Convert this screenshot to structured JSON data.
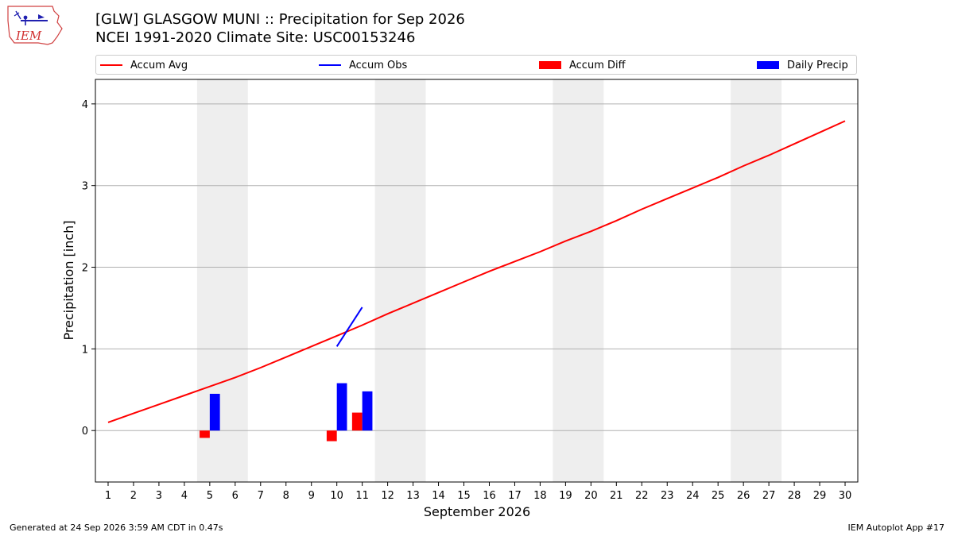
{
  "header": {
    "logo_text": "IEM",
    "title_line1": "[GLW] GLASGOW MUNI :: Precipitation for Sep 2026",
    "title_line2": "NCEI 1991-2020 Climate Site: USC00153246"
  },
  "legend": {
    "placement": "top",
    "items": [
      {
        "label": "Accum Avg",
        "type": "line",
        "color": "#ff0000"
      },
      {
        "label": "Accum Obs",
        "type": "line",
        "color": "#0000ff"
      },
      {
        "label": "Accum Diff",
        "type": "bar",
        "color": "#ff0000"
      },
      {
        "label": "Daily Precip",
        "type": "bar",
        "color": "#0000ff"
      }
    ]
  },
  "footer": {
    "generated": "Generated at 24 Sep 2026 3:59 AM CDT in 0.47s",
    "app": "IEM Autoplot App #17"
  },
  "chart_data": {
    "type": "bar",
    "xlabel": "September 2026",
    "ylabel": "Precipitation [inch]",
    "xlim": [
      0.5,
      30.5
    ],
    "ylim": [
      -0.63,
      4.3
    ],
    "x_ticks": [
      1,
      2,
      3,
      4,
      5,
      6,
      7,
      8,
      9,
      10,
      11,
      12,
      13,
      14,
      15,
      16,
      17,
      18,
      19,
      20,
      21,
      22,
      23,
      24,
      25,
      26,
      27,
      28,
      29,
      30
    ],
    "y_ticks": [
      0,
      1,
      2,
      3,
      4
    ],
    "grid": "y",
    "weekend_shading": [
      [
        4.5,
        6.5
      ],
      [
        11.5,
        13.5
      ],
      [
        18.5,
        20.5
      ],
      [
        25.5,
        27.5
      ]
    ],
    "series": [
      {
        "name": "Accum Avg",
        "type": "line",
        "color": "#ff0000",
        "x": [
          1,
          2,
          3,
          4,
          5,
          6,
          7,
          8,
          9,
          10,
          11,
          12,
          13,
          14,
          15,
          16,
          17,
          18,
          19,
          20,
          21,
          22,
          23,
          24,
          25,
          26,
          27,
          28,
          29,
          30
        ],
        "values": [
          0.1,
          0.21,
          0.32,
          0.43,
          0.54,
          0.65,
          0.77,
          0.9,
          1.03,
          1.16,
          1.29,
          1.43,
          1.56,
          1.69,
          1.82,
          1.95,
          2.07,
          2.19,
          2.32,
          2.44,
          2.57,
          2.71,
          2.84,
          2.97,
          3.1,
          3.24,
          3.37,
          3.51,
          3.65,
          3.79
        ]
      },
      {
        "name": "Accum Obs",
        "type": "line",
        "color": "#0000ff",
        "x": [
          10,
          11
        ],
        "values": [
          1.03,
          1.51
        ]
      },
      {
        "name": "Accum Diff",
        "type": "bar",
        "color": "#ff0000",
        "x": [
          5,
          10,
          11
        ],
        "values": [
          -0.09,
          -0.13,
          0.22
        ]
      },
      {
        "name": "Daily Precip",
        "type": "bar",
        "color": "#0000ff",
        "x": [
          5,
          10,
          11
        ],
        "values": [
          0.45,
          0.58,
          0.48
        ]
      }
    ]
  }
}
